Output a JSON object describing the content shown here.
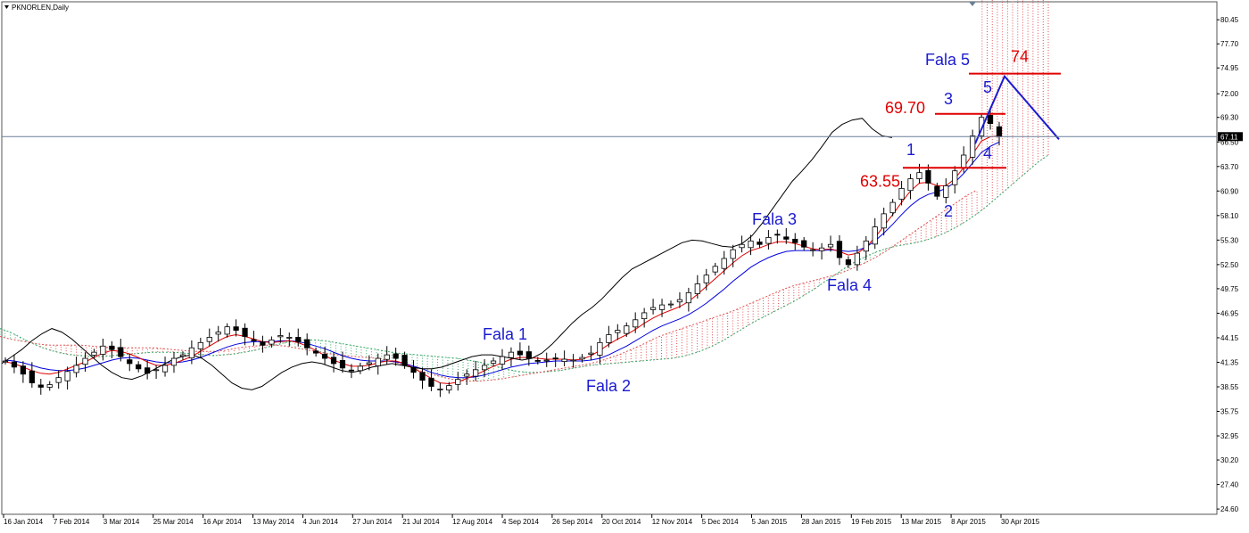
{
  "window": {
    "title": "PKNORLEN,Daily",
    "menu_icon": "triangle-down-icon",
    "current_price_label": "67.11"
  },
  "chart_data": {
    "type": "candlestick",
    "title": "PKNORLEN,Daily",
    "ylim": [
      24.0,
      82.5
    ],
    "y_ticks": [
      "80.45",
      "77.70",
      "74.95",
      "72.00",
      "69.30",
      "66.50",
      "63.70",
      "60.90",
      "58.10",
      "55.30",
      "52.50",
      "49.75",
      "46.95",
      "44.15",
      "41.35",
      "38.55",
      "35.75",
      "32.95",
      "30.20",
      "27.40",
      "24.60"
    ],
    "x_ticks": [
      "16 Jan 2014",
      "7 Feb 2014",
      "3 Mar 2014",
      "25 Mar 2014",
      "16 Apr 2014",
      "13 May 2014",
      "4 Jun 2014",
      "27 Jun 2014",
      "21 Jul 2014",
      "12 Aug 2014",
      "4 Sep 2014",
      "26 Sep 2014",
      "20 Oct 2014",
      "12 Nov 2014",
      "5 Dec 2014",
      "5 Jan 2015",
      "28 Jan 2015",
      "19 Feb 2015",
      "13 Mar 2015",
      "8 Apr 2015",
      "30 Apr 2015"
    ],
    "last_price": 67.11,
    "close_series": [
      41.5,
      40.8,
      40.0,
      39.0,
      38.5,
      38.8,
      39.6,
      40.3,
      41.0,
      41.8,
      42.5,
      43.2,
      42.8,
      42.0,
      41.2,
      40.6,
      40.1,
      40.5,
      41.0,
      41.8,
      42.2,
      43.0,
      43.6,
      44.2,
      44.8,
      45.4,
      45.0,
      44.3,
      43.8,
      43.3,
      43.9,
      44.4,
      44.2,
      43.7,
      43.0,
      42.4,
      41.8,
      41.2,
      40.7,
      40.4,
      40.9,
      41.3,
      41.8,
      42.2,
      41.8,
      41.0,
      40.2,
      39.3,
      38.6,
      38.3,
      38.7,
      39.4,
      40.0,
      40.5,
      41.0,
      41.5,
      42.0,
      42.5,
      42.2,
      41.8,
      41.5,
      41.6,
      41.8,
      41.7,
      41.6,
      41.9,
      42.4,
      43.6,
      44.5,
      45.0,
      45.5,
      46.2,
      47.0,
      47.6,
      47.9,
      48.0,
      48.5,
      49.3,
      50.3,
      51.3,
      52.3,
      53.2,
      54.2,
      54.8,
      55.2,
      54.8,
      55.6,
      55.9,
      55.4,
      55.0,
      54.5,
      54.2,
      54.4,
      54.8,
      53.3,
      52.5,
      53.8,
      55.2,
      56.8,
      58.3,
      59.6,
      61.2,
      62.3,
      63.0,
      61.8,
      60.3,
      61.5,
      63.2,
      65.0,
      67.2,
      69.3,
      68.6,
      67.11
    ],
    "series": [
      {
        "name": "",
        "role": "tenkan",
        "color": "#e00000",
        "values": [
          41.4,
          41.2,
          40.8,
          40.4,
          40.1,
          40.0,
          40.2,
          40.6,
          41.0,
          41.4,
          41.9,
          42.4,
          42.7,
          42.6,
          42.3,
          41.9,
          41.4,
          41.0,
          41.0,
          41.2,
          41.6,
          42.0,
          42.6,
          43.2,
          43.8,
          44.3,
          44.5,
          44.3,
          44.0,
          43.7,
          43.6,
          43.7,
          43.8,
          43.6,
          43.2,
          42.7,
          42.1,
          41.6,
          41.2,
          40.9,
          40.9,
          41.0,
          41.3,
          41.5,
          41.5,
          41.2,
          40.7,
          40.1,
          39.5,
          39.0,
          38.9,
          39.1,
          39.5,
          39.9,
          40.4,
          40.9,
          41.3,
          41.7,
          41.9,
          41.9,
          41.8,
          41.7,
          41.7,
          41.7,
          41.6,
          41.7,
          42.1,
          42.7,
          43.4,
          44.0,
          44.5,
          45.1,
          45.8,
          46.4,
          46.9,
          47.3,
          47.7,
          48.3,
          49.1,
          50.0,
          50.9,
          51.8,
          52.7,
          53.5,
          54.1,
          54.4,
          54.8,
          55.1,
          55.1,
          54.9,
          54.6,
          54.3,
          54.2,
          54.3,
          54.0,
          53.6,
          53.8,
          54.5,
          55.6,
          56.9,
          58.2,
          59.6,
          60.9,
          61.8,
          61.9,
          61.5,
          61.5,
          62.3,
          63.6,
          65.1,
          66.6,
          67.1,
          67.2
        ]
      },
      {
        "name": "",
        "role": "kijun",
        "color": "#0000e0",
        "values": [
          41.6,
          41.5,
          41.3,
          41.0,
          40.7,
          40.5,
          40.4,
          40.4,
          40.5,
          40.7,
          41.0,
          41.3,
          41.6,
          41.8,
          41.9,
          41.8,
          41.6,
          41.4,
          41.3,
          41.3,
          41.4,
          41.6,
          41.9,
          42.3,
          42.7,
          43.1,
          43.4,
          43.6,
          43.7,
          43.7,
          43.7,
          43.8,
          43.8,
          43.7,
          43.5,
          43.2,
          42.9,
          42.5,
          42.1,
          41.8,
          41.6,
          41.5,
          41.5,
          41.5,
          41.4,
          41.2,
          40.9,
          40.6,
          40.2,
          39.9,
          39.7,
          39.6,
          39.6,
          39.7,
          39.9,
          40.2,
          40.5,
          40.8,
          41.0,
          41.2,
          41.3,
          41.4,
          41.5,
          41.5,
          41.5,
          41.5,
          41.6,
          41.8,
          42.2,
          42.7,
          43.2,
          43.8,
          44.4,
          45.0,
          45.5,
          45.9,
          46.3,
          46.8,
          47.4,
          48.1,
          48.9,
          49.7,
          50.6,
          51.4,
          52.2,
          52.8,
          53.3,
          53.7,
          54.0,
          54.1,
          54.1,
          54.1,
          54.1,
          54.2,
          54.1,
          54.0,
          54.1,
          54.5,
          55.2,
          56.1,
          57.1,
          58.2,
          59.2,
          60.0,
          60.5,
          60.8,
          61.2,
          61.9,
          62.9,
          64.1,
          65.3,
          66.0,
          66.5
        ]
      },
      {
        "name": "",
        "role": "chikou",
        "color": "#000000",
        "values": [
          41.2,
          42.0,
          42.8,
          43.8,
          44.6,
          45.2,
          44.8,
          44.0,
          43.0,
          42.0,
          41.0,
          40.2,
          39.6,
          39.4,
          39.8,
          40.4,
          41.0,
          41.6,
          42.0,
          42.2,
          41.8,
          41.0,
          40.0,
          39.0,
          38.4,
          38.2,
          38.6,
          39.4,
          40.2,
          40.8,
          41.2,
          41.4,
          41.2,
          40.8,
          40.4,
          40.2,
          40.4,
          40.8,
          41.0,
          41.2,
          41.0,
          40.8,
          40.6,
          40.6,
          40.8,
          41.2,
          41.6,
          42.0,
          42.2,
          42.2,
          42.0,
          41.8,
          41.6,
          41.8,
          42.4,
          43.4,
          44.6,
          45.8,
          46.8,
          47.6,
          48.6,
          49.8,
          51.0,
          52.0,
          52.6,
          53.2,
          53.8,
          54.4,
          55.0,
          55.3,
          55.2,
          54.9,
          54.6,
          54.5,
          54.9,
          55.8,
          57.2,
          58.8,
          60.4,
          62.0,
          63.2,
          64.5,
          66.0,
          67.6,
          68.5,
          69.0,
          69.2,
          68.0,
          67.2,
          67.0
        ]
      },
      {
        "name": "",
        "role": "senkou_a",
        "color": "#26a65b",
        "values": [
          45.2,
          44.8,
          44.2,
          43.6,
          43.1,
          42.7,
          42.4,
          42.2,
          42.1,
          42.0,
          42.0,
          42.1,
          42.2,
          42.3,
          42.4,
          42.5,
          42.5,
          42.5,
          42.4,
          42.3,
          42.2,
          42.1,
          42.2,
          42.3,
          42.5,
          42.7,
          43.0,
          43.3,
          43.6,
          43.8,
          43.9,
          43.9,
          43.8,
          43.6,
          43.4,
          43.2,
          43.0,
          42.8,
          42.6,
          42.4,
          42.3,
          42.2,
          42.1,
          42.0,
          41.9,
          41.8,
          41.6,
          41.4,
          41.1,
          40.8,
          40.5,
          40.3,
          40.2,
          40.2,
          40.3,
          40.4,
          40.6,
          40.8,
          41.0,
          41.1,
          41.2,
          41.3,
          41.4,
          41.5,
          41.6,
          41.7,
          41.8,
          42.0,
          42.3,
          42.7,
          43.2,
          43.8,
          44.5,
          45.2,
          45.9,
          46.5,
          47.1,
          47.7,
          48.3,
          49.0,
          49.7,
          50.5,
          51.3,
          52.1,
          52.8,
          53.4,
          53.9,
          54.3,
          54.6,
          54.8,
          55.0,
          55.3,
          55.7,
          56.2,
          56.8,
          57.5,
          58.3,
          59.2,
          60.2,
          61.2,
          62.2,
          63.2,
          64.2,
          65.0
        ]
      },
      {
        "name": "",
        "role": "senkou_b",
        "color": "#e03030",
        "values": [
          44.3,
          44.0,
          43.8,
          43.6,
          43.4,
          43.3,
          43.3,
          43.3,
          43.3,
          43.2,
          43.1,
          43.0,
          43.0,
          43.0,
          43.0,
          43.0,
          42.9,
          42.8,
          42.7,
          42.6,
          42.6,
          42.6,
          42.7,
          42.9,
          43.1,
          43.2,
          43.3,
          43.3,
          43.2,
          43.0,
          42.8,
          42.6,
          42.4,
          42.2,
          42.1,
          42.0,
          41.9,
          41.8,
          41.6,
          41.3,
          40.9,
          40.5,
          40.1,
          39.8,
          39.5,
          39.3,
          39.2,
          39.2,
          39.3,
          39.4,
          39.6,
          39.8,
          40.0,
          40.2,
          40.4,
          40.6,
          40.8,
          41.0,
          41.2,
          41.5,
          41.9,
          42.3,
          42.8,
          43.3,
          43.9,
          44.4,
          44.8,
          45.2,
          45.6,
          46.0,
          46.4,
          46.8,
          47.2,
          47.7,
          48.2,
          48.7,
          49.2,
          49.7,
          50.1,
          50.4,
          50.7,
          51.0,
          51.3,
          51.7,
          52.2,
          52.7,
          53.3,
          54.0,
          54.8,
          55.6,
          56.4,
          57.2,
          58.0,
          58.8,
          59.6,
          60.4,
          61.0
        ]
      }
    ],
    "annotations": {
      "wave_labels": [
        {
          "text": "Fala 1",
          "color": "#1a1ad0"
        },
        {
          "text": "Fala 2",
          "color": "#1a1ad0"
        },
        {
          "text": "Fala 3",
          "color": "#1a1ad0"
        },
        {
          "text": "Fala 4",
          "color": "#1a1ad0"
        },
        {
          "text": "Fala 5",
          "color": "#1a1ad0"
        }
      ],
      "sub_wave_labels": [
        "1",
        "2",
        "3",
        "4",
        "5"
      ],
      "price_levels": [
        {
          "text": "63.55",
          "value": 63.55,
          "color": "#e00000"
        },
        {
          "text": "69.70",
          "value": 69.7,
          "color": "#e00000"
        },
        {
          "text": "74",
          "value": 74.3,
          "color": "#e00000"
        }
      ],
      "projection_color": "#1a1ad0",
      "projection_path": [
        66.3,
        74.0,
        66.8
      ]
    }
  }
}
